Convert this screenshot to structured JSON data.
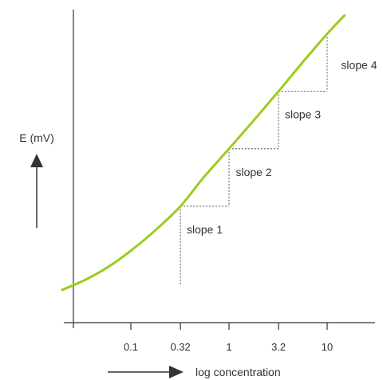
{
  "chart_data": {
    "type": "line",
    "title": "",
    "xlabel": "log concentration",
    "ylabel": "E (mV)",
    "x_scale": "log",
    "x_ticks": [
      {
        "value": 0.1,
        "label": "0.1"
      },
      {
        "value": 0.32,
        "label": "0.32"
      },
      {
        "value": 1,
        "label": "1"
      },
      {
        "value": 3.2,
        "label": "3.2"
      },
      {
        "value": 10,
        "label": "10"
      }
    ],
    "series": [
      {
        "color": "#9acd1e",
        "x": [
          0.02,
          0.035,
          0.06,
          0.1,
          0.18,
          0.32,
          0.55,
          1,
          1.8,
          3.2,
          5.6,
          10,
          15
        ],
        "y": [
          0.04,
          0.08,
          0.13,
          0.19,
          0.27,
          0.36,
          0.47,
          0.58,
          0.69,
          0.8,
          0.91,
          1.02,
          1.09
        ]
      }
    ],
    "step_annotations": [
      {
        "x_from": 0.32,
        "x_to": 1,
        "label": "slope 1"
      },
      {
        "x_from": 1,
        "x_to": 3.2,
        "label": "slope 2"
      },
      {
        "x_from": 3.2,
        "x_to": 10,
        "label": "slope 3"
      },
      {
        "x_from": 10,
        "x_to": null,
        "label": "slope 4"
      }
    ],
    "grid": false,
    "legend": "none"
  }
}
